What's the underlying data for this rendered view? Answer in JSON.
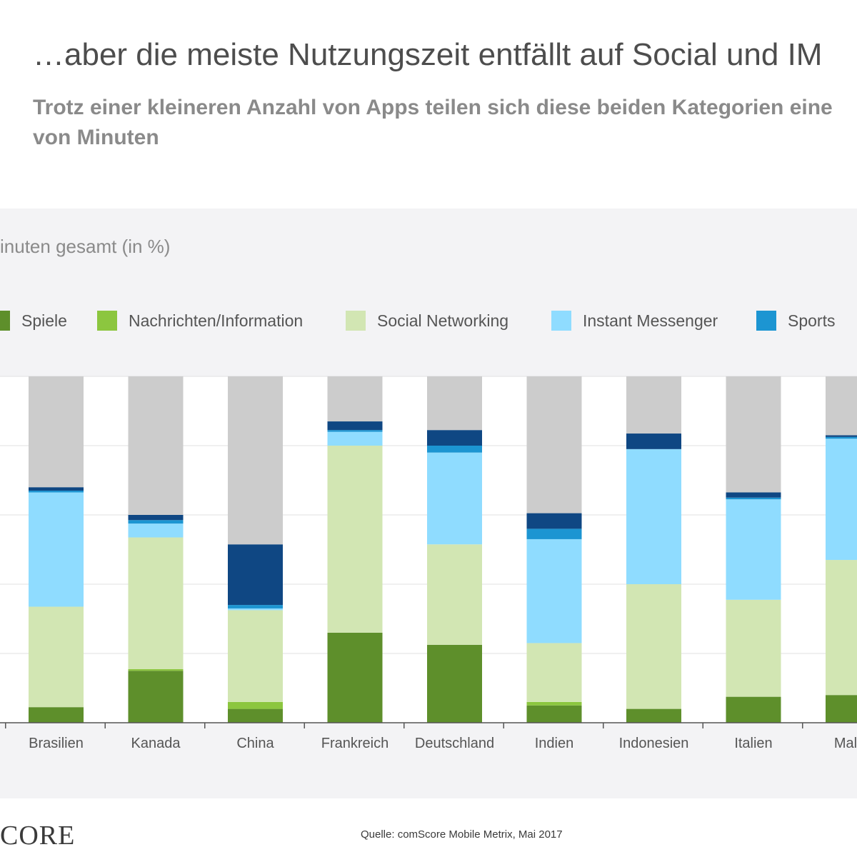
{
  "header": {
    "title": "…aber die meiste Nutzungszeit entfällt auf Social und IM",
    "subtitle": "Trotz einer kleineren Anzahl von Apps teilen sich diese beiden Kategorien eine",
    "subtitle_line2": "von Minuten"
  },
  "footer": {
    "brand": "CORE",
    "source": "Quelle: comScore Mobile Metrix, Mai 2017"
  },
  "chart_data": {
    "type": "bar",
    "stacked": true,
    "ylabel": "inuten gesamt (in %)",
    "ylim": [
      0,
      100
    ],
    "grid": true,
    "legend_position": "top",
    "categories": [
      "Brasilien",
      "Kanada",
      "China",
      "Frankreich",
      "Deutschland",
      "Indien",
      "Indonesien",
      "Italien",
      "Malay"
    ],
    "series": [
      {
        "name": "Spiele",
        "color": "#5e8f2b",
        "values": [
          4.5,
          15,
          4,
          26,
          22.5,
          5,
          4,
          7.5,
          8
        ]
      },
      {
        "name": "Nachrichten/Information",
        "color": "#8cc63f",
        "values": [
          0,
          0.5,
          2,
          0,
          0,
          1,
          0,
          0,
          0
        ]
      },
      {
        "name": "Social Networking",
        "color": "#d2e6b3",
        "values": [
          29,
          38,
          26.5,
          54,
          29,
          17,
          36,
          28,
          39
        ]
      },
      {
        "name": "Instant Messenger",
        "color": "#8fdcff",
        "values": [
          33,
          4,
          0.5,
          4,
          26.5,
          30,
          39,
          29,
          35
        ]
      },
      {
        "name": "Sports",
        "color": "#1c95d2",
        "values": [
          0.5,
          1,
          1,
          0.5,
          2,
          3,
          0,
          0.5,
          0.5
        ]
      },
      {
        "name": "",
        "color": "#0f4783",
        "values": [
          1,
          1.5,
          17.5,
          2.5,
          4.5,
          4.5,
          4.5,
          1.5,
          0.5
        ]
      },
      {
        "name": "",
        "color": "#cccccc",
        "values": [
          32,
          40,
          48.5,
          13,
          15.5,
          39.5,
          16.5,
          33.5,
          17
        ]
      }
    ]
  }
}
